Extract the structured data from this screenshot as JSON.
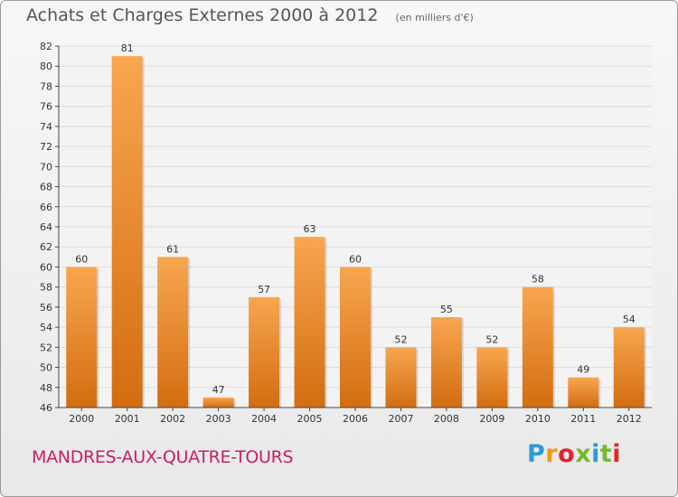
{
  "header": {
    "title": "Achats et Charges Externes 2000 à 2012",
    "unit": "(en milliers d'€)"
  },
  "footer": {
    "location": "MANDRES-AUX-QUATRE-TOURS",
    "brand": "Proxiti"
  },
  "colors": {
    "bar_top": "#f8a650",
    "bar_bottom": "#d36d10",
    "title_text": "#555555",
    "location_text": "#c71e6b",
    "grid": "#dddddd",
    "brand_letters": [
      "#2e9ad6",
      "#f19a18",
      "#e9202c",
      "#76b82a",
      "#2e9ad6",
      "#76b82a",
      "#e9202c"
    ]
  },
  "chart_data": {
    "type": "bar",
    "categories": [
      "2000",
      "2001",
      "2002",
      "2003",
      "2004",
      "2005",
      "2006",
      "2007",
      "2008",
      "2009",
      "2010",
      "2011",
      "2012"
    ],
    "values": [
      60,
      81,
      61,
      47,
      57,
      63,
      60,
      52,
      55,
      52,
      58,
      49,
      54
    ],
    "data_labels": [
      "60",
      "81",
      "61",
      "47",
      "57",
      "63",
      "60",
      "52",
      "55",
      "52",
      "58",
      "49",
      "54"
    ],
    "yticks": [
      46,
      48,
      50,
      52,
      54,
      56,
      58,
      60,
      62,
      64,
      66,
      68,
      70,
      72,
      74,
      76,
      78,
      80,
      82
    ],
    "ylim": [
      46,
      82
    ],
    "title": "Achats et Charges Externes 2000 à 2012",
    "xlabel": "",
    "ylabel": "",
    "grid": true,
    "legend": "none"
  }
}
